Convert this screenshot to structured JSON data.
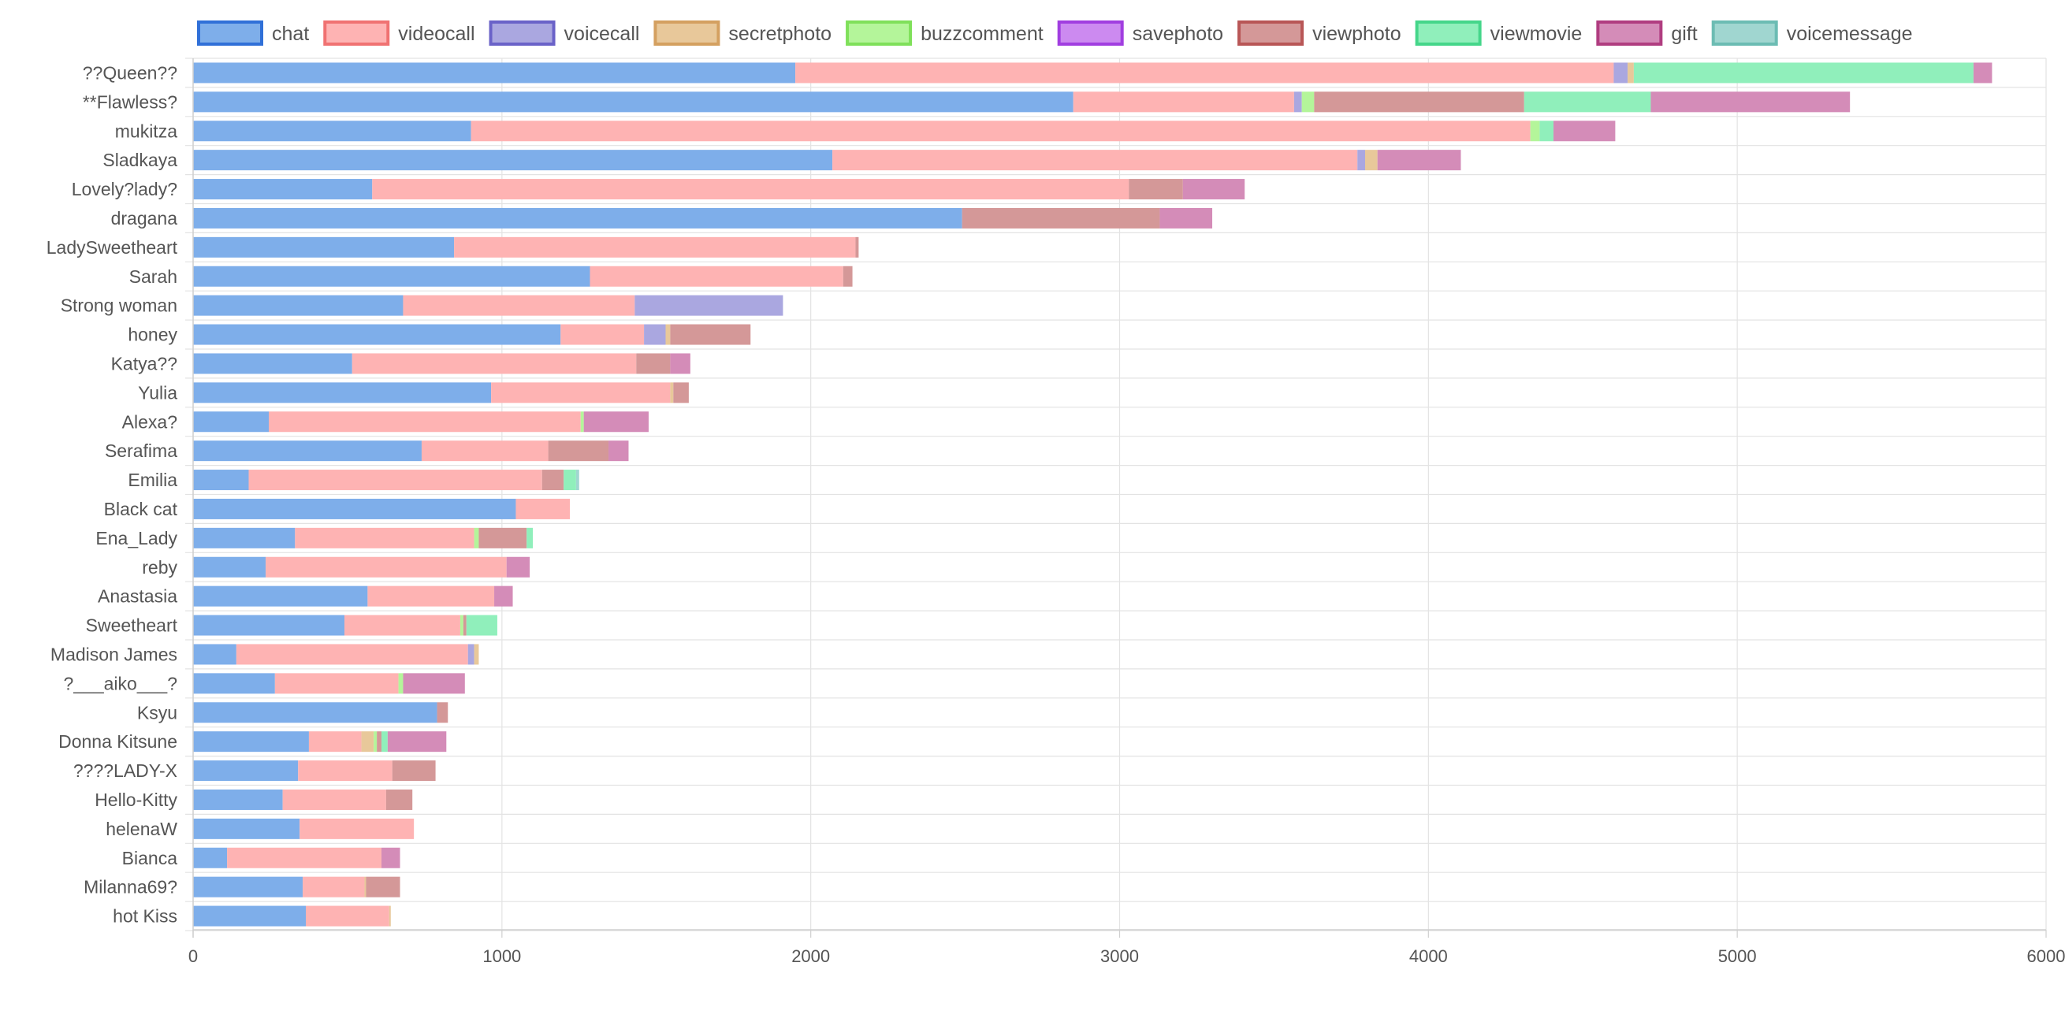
{
  "chart_data": {
    "type": "bar",
    "orientation": "horizontal",
    "stacked": true,
    "title": "",
    "xlabel": "",
    "ylabel": "",
    "xlim": [
      0,
      6000
    ],
    "xticks": [
      0,
      1000,
      2000,
      3000,
      4000,
      5000,
      6000
    ],
    "grid": true,
    "legend": "top",
    "categories": [
      "??Queen??",
      "**Flawless?",
      "mukitza",
      "Sladkaya",
      "Lovely?lady?",
      "dragana",
      "LadySweetheart",
      "Sarah",
      "Strong woman",
      "honey",
      "Katya??",
      "Yulia",
      "Alexa?",
      "Serafima",
      "Emilia",
      "Black cat",
      "Ena_Lady",
      "reby",
      "Anastasia",
      "Sweetheart",
      "Madison James",
      "?___aiko___?",
      "Ksyu",
      "Donna Kitsune",
      "????LADY-X",
      "Hello-Kitty",
      "helenaW",
      "Bianca",
      "Milanna69?",
      "hot Kiss"
    ],
    "series": [
      {
        "name": "chat",
        "color": "#7eaeea",
        "legend_border": "#3070d8",
        "values": [
          1950,
          2850,
          900,
          2070,
          580,
          2490,
          845,
          1285,
          680,
          1190,
          515,
          965,
          245,
          740,
          180,
          1045,
          330,
          235,
          565,
          490,
          140,
          265,
          790,
          375,
          340,
          290,
          345,
          110,
          355,
          365
        ]
      },
      {
        "name": "videocall",
        "color": "#feb3b3",
        "legend_border": "#f07272",
        "values": [
          2650,
          715,
          3430,
          1700,
          2450,
          0,
          1300,
          820,
          750,
          270,
          920,
          580,
          1010,
          410,
          950,
          175,
          580,
          780,
          410,
          375,
          750,
          400,
          0,
          170,
          305,
          335,
          370,
          500,
          200,
          270
        ]
      },
      {
        "name": "voicecall",
        "color": "#aaa7e0",
        "legend_border": "#6a62c8",
        "values": [
          45,
          25,
          0,
          25,
          0,
          0,
          0,
          0,
          480,
          70,
          0,
          0,
          0,
          0,
          0,
          0,
          0,
          0,
          0,
          0,
          20,
          0,
          0,
          0,
          0,
          0,
          0,
          0,
          0,
          0
        ]
      },
      {
        "name": "secretphoto",
        "color": "#e8c89a",
        "legend_border": "#d4a060",
        "values": [
          20,
          0,
          0,
          40,
          0,
          0,
          0,
          0,
          0,
          15,
          0,
          10,
          0,
          0,
          0,
          0,
          0,
          0,
          0,
          0,
          15,
          0,
          0,
          40,
          0,
          0,
          0,
          0,
          5,
          5
        ]
      },
      {
        "name": "buzzcomment",
        "color": "#b4f59a",
        "legend_border": "#7fe05a",
        "values": [
          0,
          40,
          30,
          0,
          0,
          0,
          0,
          0,
          0,
          0,
          0,
          0,
          10,
          0,
          0,
          0,
          15,
          0,
          0,
          10,
          0,
          15,
          0,
          10,
          0,
          0,
          0,
          0,
          0,
          0
        ]
      },
      {
        "name": "savephoto",
        "color": "#cc8af0",
        "legend_border": "#a13ee0",
        "values": [
          0,
          0,
          0,
          0,
          0,
          0,
          0,
          0,
          0,
          0,
          0,
          0,
          0,
          0,
          0,
          0,
          0,
          0,
          0,
          0,
          0,
          0,
          0,
          0,
          0,
          0,
          0,
          0,
          0,
          0
        ]
      },
      {
        "name": "viewphoto",
        "color": "#d49898",
        "legend_border": "#b85656",
        "values": [
          0,
          680,
          0,
          0,
          175,
          640,
          10,
          30,
          0,
          260,
          110,
          50,
          0,
          195,
          70,
          0,
          155,
          0,
          0,
          10,
          0,
          0,
          35,
          15,
          140,
          85,
          0,
          0,
          110,
          0
        ]
      },
      {
        "name": "viewmovie",
        "color": "#90efbb",
        "legend_border": "#45d68a",
        "values": [
          1100,
          410,
          45,
          0,
          0,
          0,
          0,
          0,
          0,
          0,
          0,
          0,
          0,
          0,
          40,
          0,
          20,
          0,
          0,
          100,
          0,
          0,
          0,
          20,
          0,
          0,
          0,
          0,
          0,
          0
        ]
      },
      {
        "name": "gift",
        "color": "#d48cb8",
        "legend_border": "#b03d80",
        "values": [
          60,
          645,
          200,
          270,
          200,
          170,
          0,
          0,
          0,
          0,
          65,
          0,
          210,
          65,
          0,
          0,
          0,
          75,
          60,
          0,
          0,
          200,
          0,
          190,
          0,
          0,
          0,
          60,
          0,
          0
        ]
      },
      {
        "name": "voicemessage",
        "color": "#a0d6d0",
        "legend_border": "#6cbcb3",
        "values": [
          0,
          0,
          0,
          0,
          0,
          0,
          0,
          0,
          0,
          0,
          0,
          0,
          0,
          0,
          10,
          0,
          0,
          0,
          0,
          0,
          0,
          0,
          0,
          0,
          0,
          0,
          0,
          0,
          0,
          0
        ]
      }
    ]
  }
}
